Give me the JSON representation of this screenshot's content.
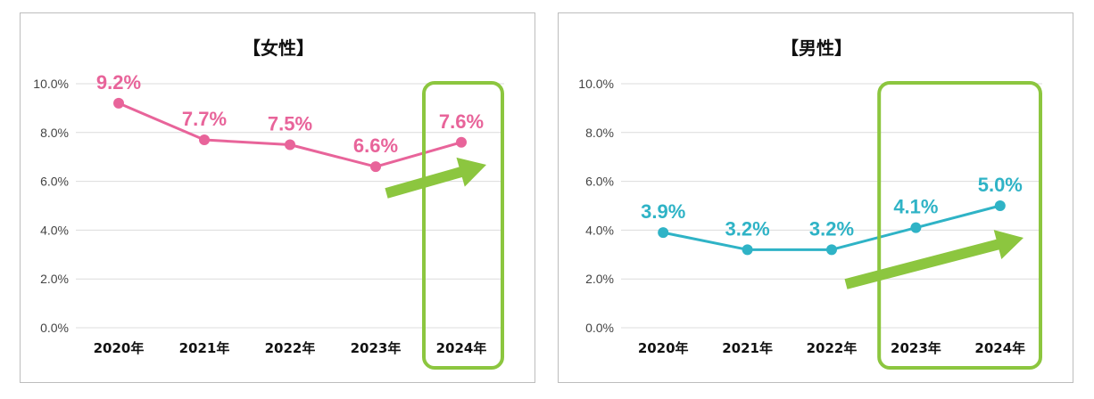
{
  "chart_data": [
    {
      "type": "line",
      "title": "【女性】",
      "categories": [
        "2020年",
        "2021年",
        "2022年",
        "2023年",
        "2024年"
      ],
      "series": [
        {
          "values": [
            9.2,
            7.7,
            7.5,
            6.6,
            7.6
          ]
        }
      ],
      "data_labels": [
        "9.2%",
        "7.7%",
        "7.5%",
        "6.6%",
        "7.6%"
      ],
      "yticks": [
        "0.0%",
        "2.0%",
        "4.0%",
        "6.0%",
        "8.0%",
        "10.0%"
      ],
      "ylim": [
        0,
        10
      ],
      "grid": true,
      "legend": "none",
      "line_color": "#e8649a",
      "highlight_color": "#8cc63f",
      "highlight_categories": [
        "2024年"
      ],
      "trend_arrow": "rising, over 2023年→2024年"
    },
    {
      "type": "line",
      "title": "【男性】",
      "categories": [
        "2020年",
        "2021年",
        "2022年",
        "2023年",
        "2024年"
      ],
      "series": [
        {
          "values": [
            3.9,
            3.2,
            3.2,
            4.1,
            5.0
          ]
        }
      ],
      "data_labels": [
        "3.9%",
        "3.2%",
        "3.2%",
        "4.1%",
        "5.0%"
      ],
      "yticks": [
        "0.0%",
        "2.0%",
        "4.0%",
        "6.0%",
        "8.0%",
        "10.0%"
      ],
      "ylim": [
        0,
        10
      ],
      "grid": true,
      "legend": "none",
      "line_color": "#2fb3c6",
      "highlight_color": "#8cc63f",
      "highlight_categories": [
        "2023年",
        "2024年"
      ],
      "trend_arrow": "rising, over 2022年→2024年"
    }
  ]
}
